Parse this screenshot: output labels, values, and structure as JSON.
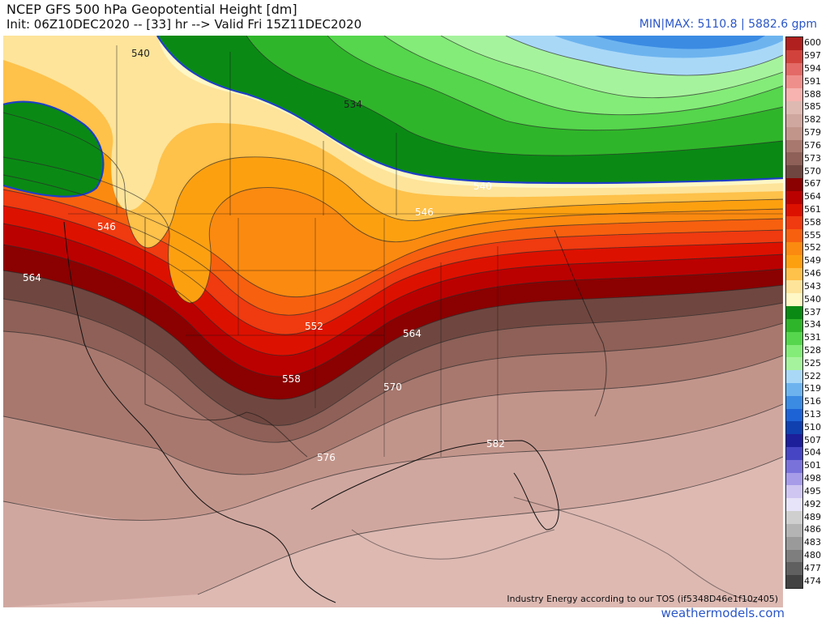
{
  "header": {
    "title": "NCEP GFS 500 hPa Geopotential Height [dm]",
    "init": "Init: 06Z10DEC2020 -- [33] hr --> Valid Fri 15Z11DEC2020",
    "minmax": "MIN|MAX: 5110.8 | 5882.6 gpm"
  },
  "map": {
    "tos_text": "Industry Energy according to our TOS (if5348D46e1f10z405)",
    "contour_labels": [
      "540",
      "534",
      "540",
      "546",
      "546",
      "564",
      "552",
      "564",
      "558",
      "570",
      "576",
      "582"
    ]
  },
  "legend": {
    "labels": [
      "600",
      "597",
      "594",
      "591",
      "588",
      "585",
      "582",
      "579",
      "576",
      "573",
      "570",
      "567",
      "564",
      "561",
      "558",
      "555",
      "552",
      "549",
      "546",
      "543",
      "540",
      "537",
      "534",
      "531",
      "528",
      "525",
      "522",
      "519",
      "516",
      "513",
      "510",
      "507",
      "504",
      "501",
      "498",
      "495",
      "492",
      "489",
      "486",
      "483",
      "480",
      "477",
      "474"
    ],
    "colors": [
      "#b0201e",
      "#d2423c",
      "#e36a66",
      "#ef8f8b",
      "#f6b3af",
      "#ddb9b2",
      "#d0a79f",
      "#c2958b",
      "#a8786e",
      "#8e6057",
      "#6f4740",
      "#8b0000",
      "#bb0000",
      "#dd1100",
      "#f03a10",
      "#f7600f",
      "#fb8a10",
      "#fda010",
      "#fec14a",
      "#fde49a",
      "#fef7c6",
      "#0a8a14",
      "#2fb52a",
      "#55d64c",
      "#84ec79",
      "#a6f39d",
      "#a9d8f7",
      "#6db4ef",
      "#3b8be3",
      "#1e63d6",
      "#1040b0",
      "#1d1e9a",
      "#4646c4",
      "#7a72db",
      "#a79ce8",
      "#cfc6f1",
      "#e7e3f8",
      "#cfcfcf",
      "#b4b4b4",
      "#9a9a9a",
      "#7e7e7e",
      "#606060",
      "#424242"
    ]
  },
  "footer": {
    "brand": "weathermodels.com"
  }
}
